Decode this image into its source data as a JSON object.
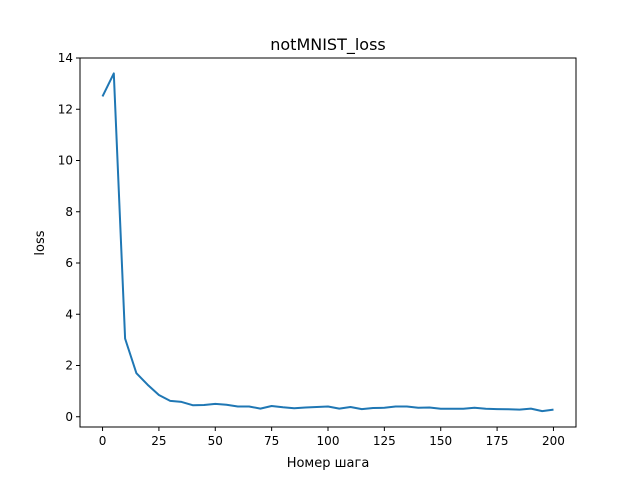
{
  "chart_data": {
    "type": "line",
    "title": "notMNIST_loss",
    "xlabel": "Номер шага",
    "ylabel": "loss",
    "xlim": [
      -10,
      210
    ],
    "ylim": [
      -0.4,
      14
    ],
    "x_ticks": [
      0,
      25,
      50,
      75,
      100,
      125,
      150,
      175,
      200
    ],
    "y_ticks": [
      0,
      2,
      4,
      6,
      8,
      10,
      12,
      14
    ],
    "grid": false,
    "series": [
      {
        "color": "#1f77b4",
        "x": [
          0,
          5,
          10,
          15,
          20,
          25,
          30,
          35,
          40,
          45,
          50,
          55,
          60,
          65,
          70,
          75,
          80,
          85,
          90,
          95,
          100,
          105,
          110,
          115,
          120,
          125,
          130,
          135,
          140,
          145,
          150,
          155,
          160,
          165,
          170,
          175,
          180,
          185,
          190,
          195,
          200
        ],
        "values": [
          12.5,
          13.4,
          3.05,
          1.7,
          1.25,
          0.85,
          0.62,
          0.58,
          0.45,
          0.46,
          0.5,
          0.47,
          0.4,
          0.4,
          0.32,
          0.42,
          0.37,
          0.33,
          0.36,
          0.38,
          0.4,
          0.32,
          0.38,
          0.3,
          0.34,
          0.35,
          0.4,
          0.4,
          0.35,
          0.36,
          0.31,
          0.31,
          0.31,
          0.35,
          0.31,
          0.3,
          0.29,
          0.28,
          0.32,
          0.22,
          0.28
        ]
      }
    ]
  }
}
